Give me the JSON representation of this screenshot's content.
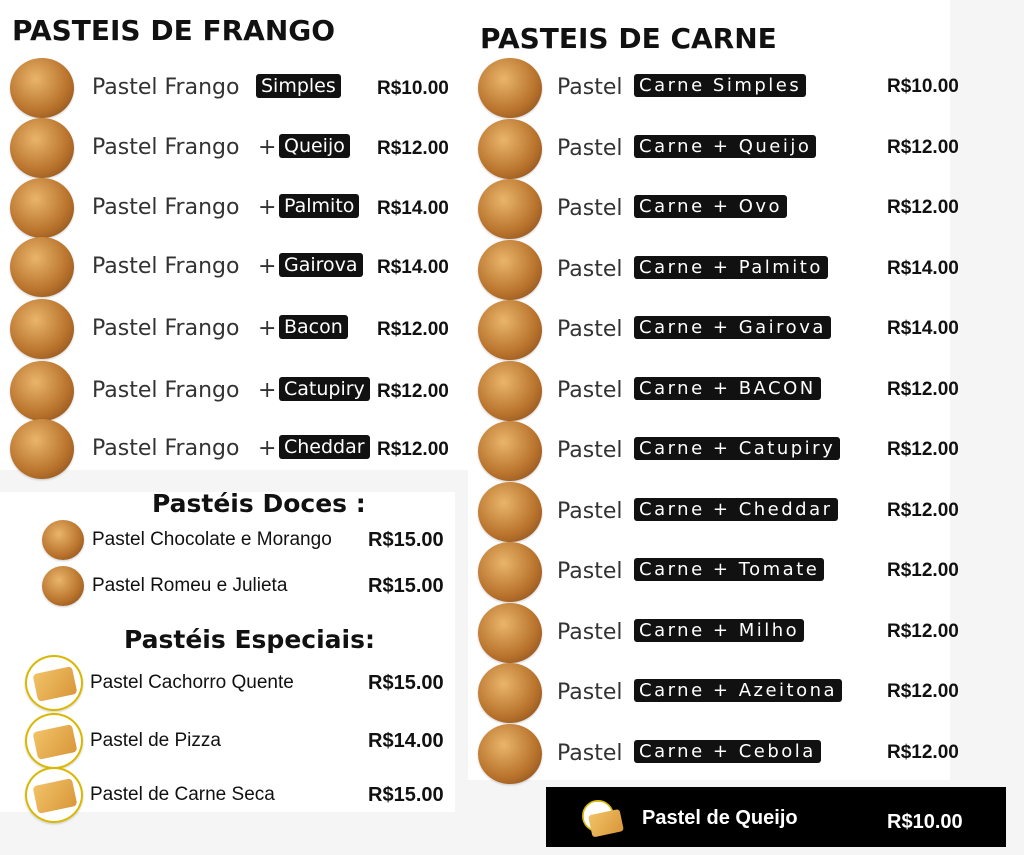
{
  "frango": {
    "title": "PASTEIS DE FRANGO",
    "prefix": "Pastel Frango",
    "items": [
      {
        "name": "Simples",
        "plus": false,
        "price": "R$10.00"
      },
      {
        "name": "Queijo",
        "plus": true,
        "price": "R$12.00"
      },
      {
        "name": "Palmito",
        "plus": true,
        "price": "R$14.00"
      },
      {
        "name": "Gairova",
        "plus": true,
        "price": "R$14.00"
      },
      {
        "name": "Bacon",
        "plus": true,
        "price": "R$12.00"
      },
      {
        "name": "Catupiry",
        "plus": true,
        "price": "R$12.00"
      },
      {
        "name": "Cheddar",
        "plus": true,
        "price": "R$12.00"
      }
    ]
  },
  "carne": {
    "title": "PASTEIS DE CARNE",
    "prefix": "Pastel",
    "items": [
      {
        "name": "Carne Simples",
        "price": "R$10.00"
      },
      {
        "name": "Carne + Queijo",
        "price": "R$12.00"
      },
      {
        "name": "Carne + Ovo",
        "price": "R$12.00"
      },
      {
        "name": "Carne + Palmito",
        "price": "R$14.00"
      },
      {
        "name": "Carne + Gairova",
        "price": "R$14.00"
      },
      {
        "name": "Carne + BACON",
        "price": "R$12.00"
      },
      {
        "name": "Carne + Catupiry",
        "price": "R$12.00"
      },
      {
        "name": "Carne + Cheddar",
        "price": "R$12.00"
      },
      {
        "name": "Carne + Tomate",
        "price": "R$12.00"
      },
      {
        "name": "Carne + Milho",
        "price": "R$12.00"
      },
      {
        "name": "Carne + Azeitona",
        "price": "R$12.00"
      },
      {
        "name": "Carne + Cebola",
        "price": "R$12.00"
      }
    ]
  },
  "doces": {
    "title": "Pastéis Doces :",
    "items": [
      {
        "name": "Pastel Chocolate e Morango",
        "price": "R$15.00"
      },
      {
        "name": "Pastel Romeu e Julieta",
        "price": "R$15.00"
      }
    ]
  },
  "especiais": {
    "title": "Pastéis Especiais:",
    "items": [
      {
        "name": "Pastel Cachorro Quente",
        "price": "R$15.00"
      },
      {
        "name": "Pastel de Pizza",
        "price": "R$14.00"
      },
      {
        "name": "Pastel de Carne Seca",
        "price": "R$15.00"
      }
    ]
  },
  "queijo": {
    "name": "Pastel de Queijo",
    "price": "R$10.00"
  }
}
